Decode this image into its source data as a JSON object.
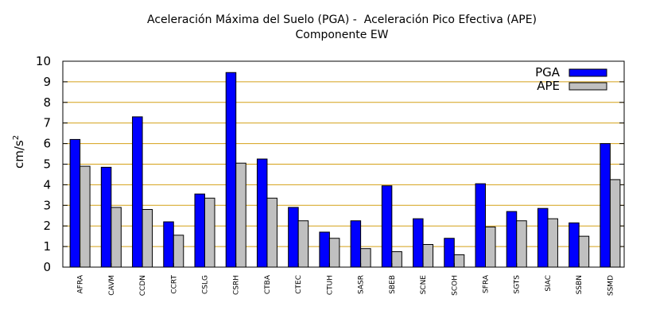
{
  "chart_data": {
    "type": "bar",
    "title": "Aceleración Máxima del Suelo (PGA) -  Aceleración Pico Efectiva (APE)",
    "subtitle": "Componente EW",
    "xlabel": "",
    "ylabel": "cm/s²",
    "ylabel_base": "cm/s",
    "ylabel_exp": "2",
    "ylim": [
      0,
      10
    ],
    "yticks": [
      "0",
      "1",
      "2",
      "3",
      "4",
      "5",
      "6",
      "7",
      "8",
      "9",
      "10"
    ],
    "grid": true,
    "legend": "top-right",
    "categories": [
      "AFRA",
      "CAVM",
      "CCDN",
      "CCRT",
      "CSLG",
      "CSRH",
      "CTBA",
      "CTEC",
      "CTUH",
      "SASR",
      "SBEB",
      "SCNE",
      "SCOH",
      "SFRA",
      "SGTS",
      "SIAC",
      "SSBN",
      "SSMD"
    ],
    "series": [
      {
        "name": "PGA",
        "color": "#0000ff",
        "values": [
          6.2,
          4.85,
          7.3,
          2.2,
          3.55,
          9.45,
          5.25,
          2.9,
          1.7,
          2.25,
          3.95,
          2.35,
          1.4,
          4.05,
          2.7,
          2.85,
          2.15,
          6.0
        ]
      },
      {
        "name": "APE",
        "color": "#c0c0c0",
        "values": [
          4.9,
          2.9,
          2.8,
          1.55,
          3.35,
          5.05,
          3.35,
          2.25,
          1.4,
          0.9,
          0.75,
          1.1,
          0.6,
          1.95,
          2.25,
          2.35,
          1.5,
          4.25
        ]
      }
    ]
  }
}
